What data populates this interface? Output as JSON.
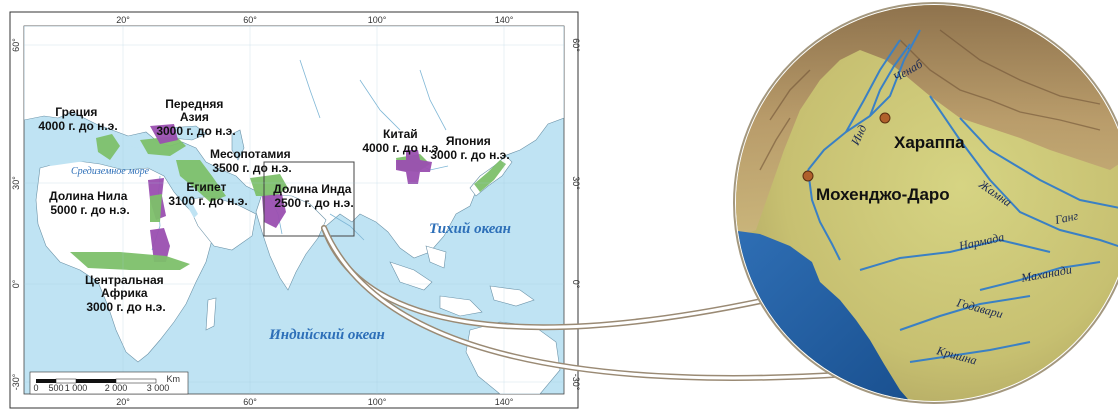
{
  "world_map": {
    "lon_ticks": [
      "20°",
      "60°",
      "100°",
      "140°"
    ],
    "lat_ticks": [
      "60°",
      "30°",
      "0°",
      "-30°"
    ],
    "labels": {
      "greece": [
        "Греция",
        "4000 г. до н.э."
      ],
      "near_east": [
        "Передняя",
        "Азия",
        "3000 г. до н.э."
      ],
      "mesopotamia": [
        "Месопотамия",
        "3500 г. до н.э."
      ],
      "egypt": [
        "Египет",
        "3100 г. до н.э."
      ],
      "nile": [
        "Долина Нила",
        "5000 г. до н.э."
      ],
      "indus": [
        "Долина Инда",
        "2500 г. до н.э."
      ],
      "china": [
        "Китай",
        "4000 г. до н.э."
      ],
      "japan": [
        "Япония",
        "3000 г. до н.э."
      ],
      "central_africa": [
        "Центральная",
        "Африка",
        "3000 г. до н.э."
      ]
    },
    "seas": {
      "mediterranean": "Средиземное море",
      "pacific": "Тихий океан",
      "indian": "Индийский океан"
    },
    "scale_bar": {
      "unit": "Km",
      "labels": [
        "0",
        "500",
        "1 000",
        "2 000",
        "3 000"
      ]
    },
    "colors": {
      "water": "#bfe3f3",
      "land": "#ffffff",
      "civilization_green": "#7dc06a",
      "civilization_purple": "#9a4fb0"
    }
  },
  "inset_map": {
    "rivers": {
      "chenab": "Ченаб",
      "ind": "Инд",
      "jamna": "Жамна",
      "gang": "Ганг",
      "narmada": "Нармада",
      "mahanadi": "Маханади",
      "godavari": "Годавари",
      "krishna": "Кришна"
    },
    "cities": {
      "harappa": "Хараппа",
      "mohenjo_daro": "Мохенджо-Даро"
    }
  }
}
